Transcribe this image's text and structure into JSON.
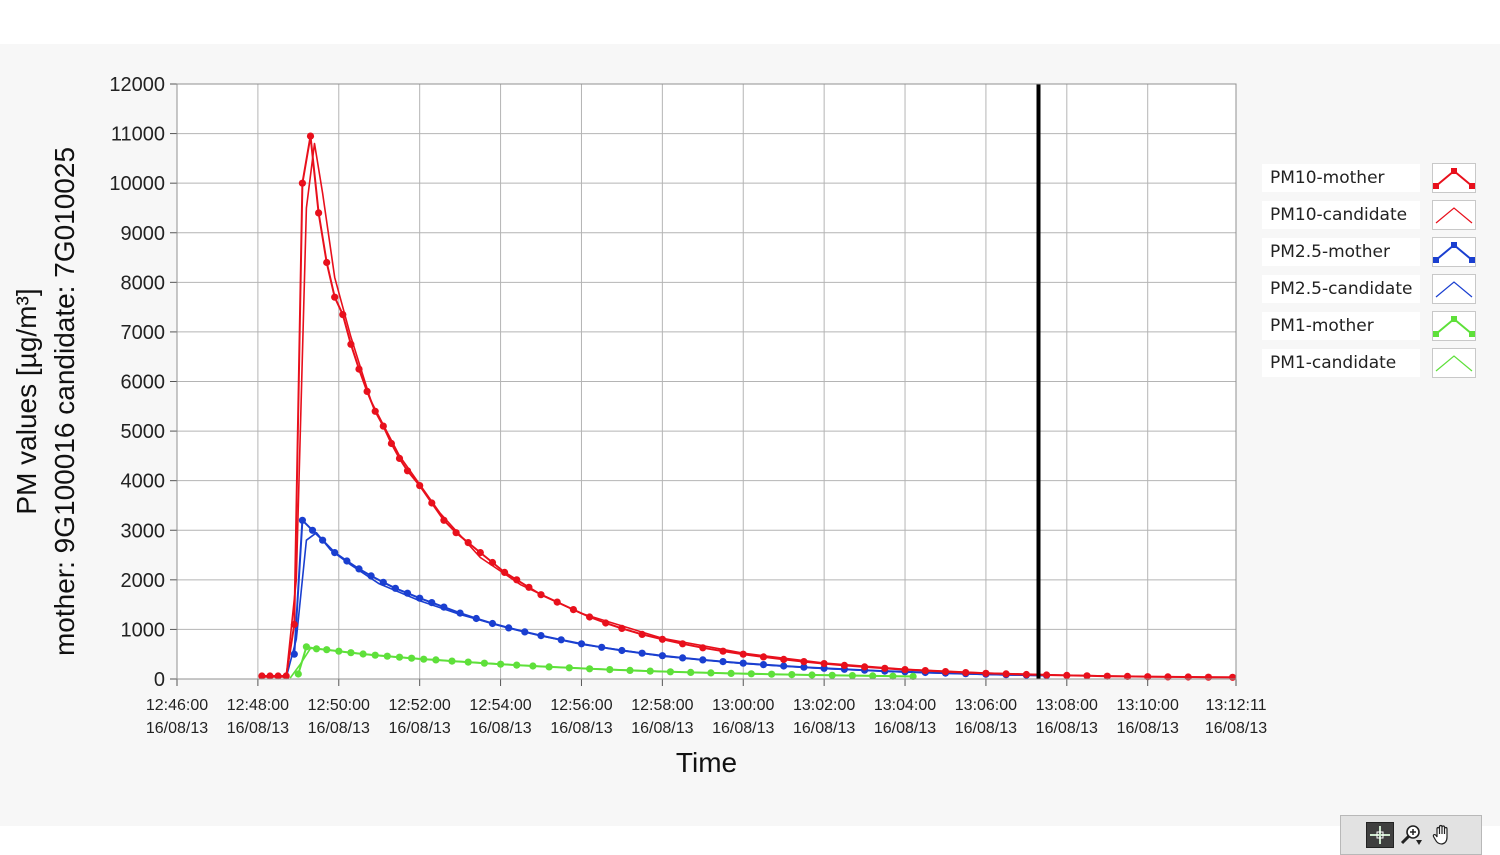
{
  "chart_data": {
    "type": "line",
    "xlabel": "Time",
    "ylabel": "PM values [µg/m³]",
    "ylabel2": "mother: 9G100016   candidate: 7G010025",
    "ylim": [
      0,
      12000
    ],
    "yticks": [
      "0",
      "1000",
      "2000",
      "3000",
      "4000",
      "5000",
      "6000",
      "7000",
      "8000",
      "9000",
      "10000",
      "11000",
      "12000"
    ],
    "xlim_minutes": [
      0,
      26.183
    ],
    "xticks": [
      {
        "t": 0,
        "time": "12:46:00",
        "date": "16/08/13"
      },
      {
        "t": 2,
        "time": "12:48:00",
        "date": "16/08/13"
      },
      {
        "t": 4,
        "time": "12:50:00",
        "date": "16/08/13"
      },
      {
        "t": 6,
        "time": "12:52:00",
        "date": "16/08/13"
      },
      {
        "t": 8,
        "time": "12:54:00",
        "date": "16/08/13"
      },
      {
        "t": 10,
        "time": "12:56:00",
        "date": "16/08/13"
      },
      {
        "t": 12,
        "time": "12:58:00",
        "date": "16/08/13"
      },
      {
        "t": 14,
        "time": "13:00:00",
        "date": "16/08/13"
      },
      {
        "t": 16,
        "time": "13:02:00",
        "date": "16/08/13"
      },
      {
        "t": 18,
        "time": "13:04:00",
        "date": "16/08/13"
      },
      {
        "t": 20,
        "time": "13:06:00",
        "date": "16/08/13"
      },
      {
        "t": 22,
        "time": "13:08:00",
        "date": "16/08/13"
      },
      {
        "t": 24,
        "time": "13:10:00",
        "date": "16/08/13"
      },
      {
        "t": 26.183,
        "time": "13:12:11",
        "date": "16/08/13"
      }
    ],
    "cursor_t": 21.3,
    "grid": true,
    "legend_position": "right",
    "series": [
      {
        "name": "PM10-mother",
        "color": "#e8101c",
        "markers": true,
        "points": [
          [
            2.1,
            60
          ],
          [
            2.3,
            60
          ],
          [
            2.5,
            60
          ],
          [
            2.7,
            60
          ],
          [
            2.9,
            1100
          ],
          [
            3.1,
            10000
          ],
          [
            3.3,
            10950
          ],
          [
            3.5,
            9400
          ],
          [
            3.7,
            8400
          ],
          [
            3.9,
            7700
          ],
          [
            4.1,
            7350
          ],
          [
            4.3,
            6750
          ],
          [
            4.5,
            6250
          ],
          [
            4.7,
            5800
          ],
          [
            4.9,
            5400
          ],
          [
            5.1,
            5100
          ],
          [
            5.3,
            4750
          ],
          [
            5.5,
            4450
          ],
          [
            5.7,
            4200
          ],
          [
            6,
            3900
          ],
          [
            6.3,
            3550
          ],
          [
            6.6,
            3200
          ],
          [
            6.9,
            2950
          ],
          [
            7.2,
            2750
          ],
          [
            7.5,
            2550
          ],
          [
            7.8,
            2350
          ],
          [
            8.1,
            2150
          ],
          [
            8.4,
            2000
          ],
          [
            8.7,
            1850
          ],
          [
            9,
            1700
          ],
          [
            9.4,
            1550
          ],
          [
            9.8,
            1400
          ],
          [
            10.2,
            1250
          ],
          [
            10.6,
            1130
          ],
          [
            11,
            1020
          ],
          [
            11.5,
            900
          ],
          [
            12,
            800
          ],
          [
            12.5,
            710
          ],
          [
            13,
            630
          ],
          [
            13.5,
            560
          ],
          [
            14,
            500
          ],
          [
            14.5,
            445
          ],
          [
            15,
            395
          ],
          [
            15.5,
            350
          ],
          [
            16,
            310
          ],
          [
            16.5,
            275
          ],
          [
            17,
            245
          ],
          [
            17.5,
            215
          ],
          [
            18,
            190
          ],
          [
            18.5,
            170
          ],
          [
            19,
            150
          ],
          [
            19.5,
            130
          ],
          [
            20,
            115
          ],
          [
            20.5,
            102
          ],
          [
            21,
            90
          ],
          [
            21.5,
            80
          ],
          [
            22,
            72
          ],
          [
            22.5,
            64
          ],
          [
            23,
            57
          ],
          [
            23.5,
            52
          ],
          [
            24,
            47
          ],
          [
            24.5,
            43
          ],
          [
            25,
            40
          ],
          [
            25.5,
            37
          ],
          [
            26.1,
            34
          ]
        ]
      },
      {
        "name": "PM10-candidate",
        "color": "#e8101c",
        "markers": false,
        "points": [
          [
            2.1,
            40
          ],
          [
            2.7,
            40
          ],
          [
            2.95,
            2000
          ],
          [
            3.2,
            9500
          ],
          [
            3.4,
            10800
          ],
          [
            3.6,
            9800
          ],
          [
            3.9,
            8100
          ],
          [
            4.3,
            6900
          ],
          [
            4.8,
            5600
          ],
          [
            5.5,
            4500
          ],
          [
            6.5,
            3350
          ],
          [
            7.5,
            2450
          ],
          [
            8.5,
            1900
          ],
          [
            10,
            1320
          ],
          [
            12,
            820
          ],
          [
            14,
            520
          ],
          [
            16,
            320
          ],
          [
            18,
            195
          ],
          [
            20,
            120
          ],
          [
            22,
            75
          ],
          [
            24,
            48
          ],
          [
            26.1,
            34
          ]
        ]
      },
      {
        "name": "PM2.5-mother",
        "color": "#1a3fd0",
        "markers": true,
        "points": [
          [
            2.9,
            500
          ],
          [
            3.1,
            3200
          ],
          [
            3.35,
            3000
          ],
          [
            3.6,
            2800
          ],
          [
            3.9,
            2550
          ],
          [
            4.2,
            2380
          ],
          [
            4.5,
            2220
          ],
          [
            4.8,
            2080
          ],
          [
            5.1,
            1950
          ],
          [
            5.4,
            1830
          ],
          [
            5.7,
            1730
          ],
          [
            6,
            1630
          ],
          [
            6.3,
            1540
          ],
          [
            6.6,
            1450
          ],
          [
            7,
            1330
          ],
          [
            7.4,
            1220
          ],
          [
            7.8,
            1120
          ],
          [
            8.2,
            1030
          ],
          [
            8.6,
            950
          ],
          [
            9,
            875
          ],
          [
            9.5,
            790
          ],
          [
            10,
            710
          ],
          [
            10.5,
            640
          ],
          [
            11,
            575
          ],
          [
            11.5,
            520
          ],
          [
            12,
            470
          ],
          [
            12.5,
            425
          ],
          [
            13,
            385
          ],
          [
            13.5,
            350
          ],
          [
            14,
            318
          ],
          [
            14.5,
            290
          ],
          [
            15,
            262
          ],
          [
            15.5,
            238
          ],
          [
            16,
            216
          ],
          [
            16.5,
            196
          ],
          [
            17,
            178
          ],
          [
            17.5,
            160
          ],
          [
            18,
            145
          ],
          [
            18.5,
            131
          ],
          [
            19,
            118
          ],
          [
            19.5,
            106
          ],
          [
            20,
            96
          ],
          [
            20.5,
            87
          ],
          [
            21,
            78
          ],
          [
            21.5,
            70
          ]
        ]
      },
      {
        "name": "PM2.5-candidate",
        "color": "#1a3fd0",
        "markers": false,
        "points": [
          [
            2.7,
            30
          ],
          [
            2.95,
            800
          ],
          [
            3.2,
            2800
          ],
          [
            3.45,
            2950
          ],
          [
            3.8,
            2600
          ],
          [
            4.3,
            2300
          ],
          [
            5,
            1920
          ],
          [
            6,
            1580
          ],
          [
            7,
            1300
          ],
          [
            8,
            1070
          ],
          [
            9,
            870
          ],
          [
            10,
            700
          ],
          [
            12,
            460
          ],
          [
            14,
            310
          ],
          [
            16,
            210
          ],
          [
            18,
            140
          ],
          [
            20,
            92
          ],
          [
            21.5,
            68
          ]
        ]
      },
      {
        "name": "PM1-mother",
        "color": "#5ee03a",
        "markers": true,
        "points": [
          [
            3,
            100
          ],
          [
            3.2,
            650
          ],
          [
            3.45,
            610
          ],
          [
            3.7,
            590
          ],
          [
            4,
            560
          ],
          [
            4.3,
            530
          ],
          [
            4.6,
            505
          ],
          [
            4.9,
            480
          ],
          [
            5.2,
            460
          ],
          [
            5.5,
            440
          ],
          [
            5.8,
            420
          ],
          [
            6.1,
            400
          ],
          [
            6.4,
            385
          ],
          [
            6.8,
            360
          ],
          [
            7.2,
            340
          ],
          [
            7.6,
            318
          ],
          [
            8,
            298
          ],
          [
            8.4,
            280
          ],
          [
            8.8,
            262
          ],
          [
            9.2,
            245
          ],
          [
            9.7,
            225
          ],
          [
            10.2,
            206
          ],
          [
            10.7,
            189
          ],
          [
            11.2,
            173
          ],
          [
            11.7,
            159
          ],
          [
            12.2,
            146
          ],
          [
            12.7,
            134
          ],
          [
            13.2,
            123
          ],
          [
            13.7,
            113
          ],
          [
            14.2,
            104
          ],
          [
            14.7,
            96
          ],
          [
            15.2,
            88
          ],
          [
            15.7,
            81
          ],
          [
            16.2,
            74
          ],
          [
            16.7,
            68
          ],
          [
            17.2,
            62
          ],
          [
            17.7,
            57
          ],
          [
            18.2,
            52
          ]
        ]
      },
      {
        "name": "PM1-candidate",
        "color": "#5ee03a",
        "markers": false,
        "points": [
          [
            2.8,
            20
          ],
          [
            3.05,
            300
          ],
          [
            3.3,
            620
          ],
          [
            3.6,
            600
          ],
          [
            4.2,
            540
          ],
          [
            5,
            470
          ],
          [
            6,
            405
          ],
          [
            7,
            350
          ],
          [
            8,
            300
          ],
          [
            9,
            255
          ],
          [
            10,
            215
          ],
          [
            12,
            150
          ],
          [
            14,
            105
          ],
          [
            16,
            77
          ],
          [
            18.2,
            52
          ]
        ]
      }
    ]
  },
  "legend": [
    {
      "label": "PM10-mother",
      "color": "#e8101c",
      "markers": true
    },
    {
      "label": "PM10-candidate",
      "color": "#e8101c",
      "markers": false
    },
    {
      "label": "PM2.5-mother",
      "color": "#1a3fd0",
      "markers": true
    },
    {
      "label": "PM2.5-candidate",
      "color": "#1a3fd0",
      "markers": false
    },
    {
      "label": "PM1-mother",
      "color": "#5ee03a",
      "markers": true
    },
    {
      "label": "PM1-candidate",
      "color": "#5ee03a",
      "markers": false
    }
  ],
  "toolbar": {
    "tools": [
      {
        "name": "cursor-mover-icon",
        "active": true
      },
      {
        "name": "zoom-icon",
        "active": false
      },
      {
        "name": "pan-hand-icon",
        "active": false
      }
    ]
  }
}
